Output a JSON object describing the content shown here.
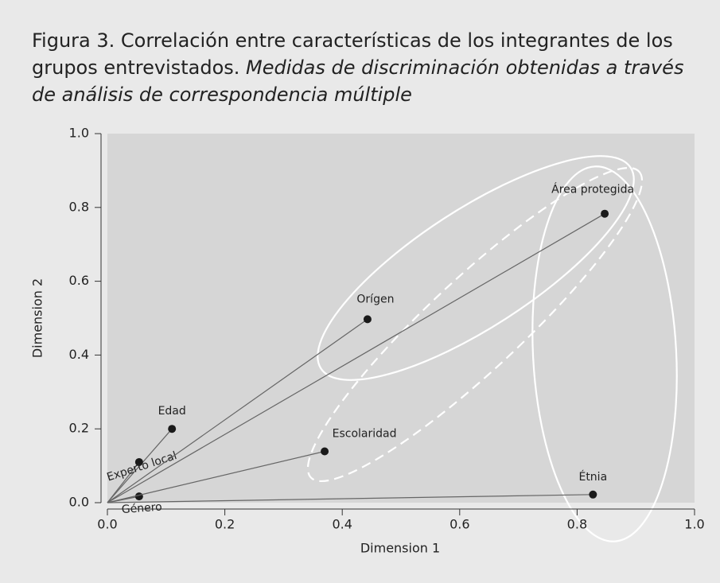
{
  "chart_data": {
    "type": "scatter",
    "title": "Figura 3.  Correlación entre características de los integrantes de los grupos entrevistados.",
    "subtitle": "Medidas de discriminación obtenidas a través de análisis de correspondencia múltiple",
    "x_label": "Dimension 1",
    "y_label": "Dimension 2",
    "labels": [
      "Edad",
      "Experto local",
      "Género",
      "Escolaridad",
      "Orígen",
      "Área protegida",
      "Étnia"
    ],
    "x": [
      0.11,
      0.054,
      0.054,
      0.37,
      0.443,
      0.847,
      0.827
    ],
    "values": [
      0.2,
      0.11,
      0.017,
      0.139,
      0.497,
      0.783,
      0.022
    ],
    "color": "#1a1a1a",
    "xlim": [
      0,
      1
    ],
    "ylim": [
      0,
      1
    ],
    "xticks": [
      {
        "value": 0,
        "label": "0.0"
      },
      {
        "value": 0.2,
        "label": "0.2"
      },
      {
        "value": 0.4,
        "label": "0.4"
      },
      {
        "value": 0.6,
        "label": "0.6"
      },
      {
        "value": 0.8,
        "label": "0.8"
      },
      {
        "value": 1,
        "label": "1.0"
      }
    ],
    "yticks": [
      {
        "value": 0,
        "label": "0.0"
      },
      {
        "value": 0.2,
        "label": "0.2"
      },
      {
        "value": 0.4,
        "label": "0.4"
      },
      {
        "value": 0.6,
        "label": "0.6"
      },
      {
        "value": 0.8,
        "label": "0.8"
      },
      {
        "value": 1,
        "label": "1.0"
      }
    ]
  }
}
